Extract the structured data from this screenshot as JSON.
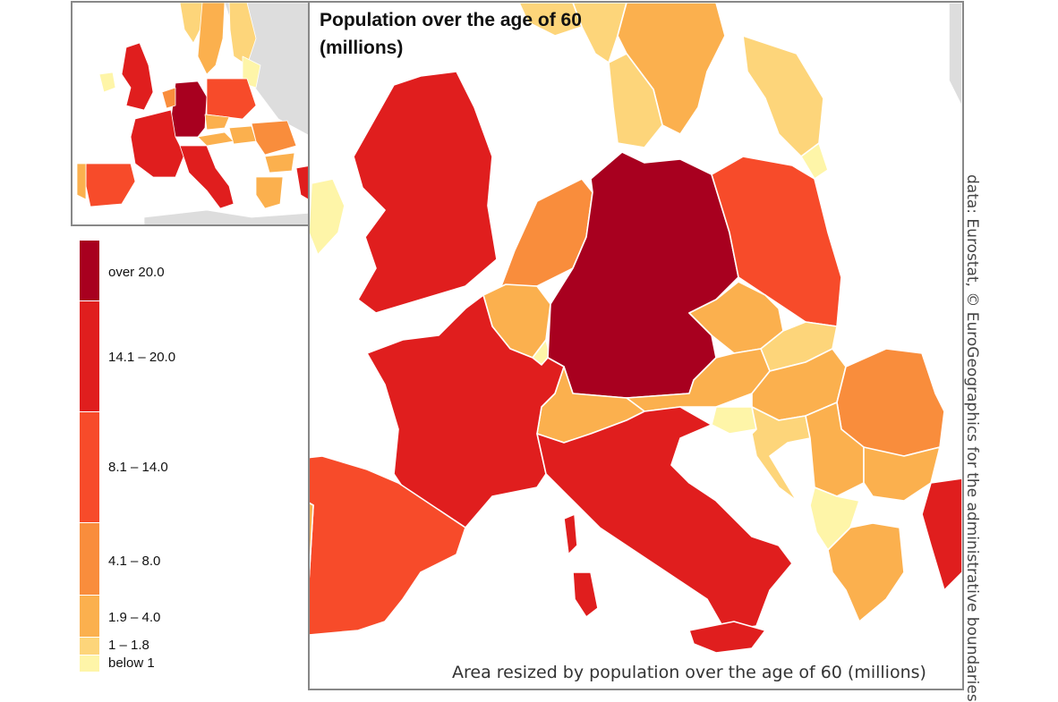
{
  "title_line1": "Population over the age of 60",
  "title_line2": "(millions)",
  "subtitle": "Area resized by population over the age of 60 (millions)",
  "source": "data: Eurostat, © EuroGeographics for the administrative boundaries",
  "legend": [
    {
      "label": "over 20.0",
      "color": "#A8001F"
    },
    {
      "label": "14.1 – 20.0",
      "color": "#E01E1E"
    },
    {
      "label": "8.1 – 14.0",
      "color": "#F74B2A"
    },
    {
      "label": "4.1 – 8.0",
      "color": "#F98D3C"
    },
    {
      "label": "1.9 – 4.0",
      "color": "#FBB04E"
    },
    {
      "label": "1 – 1.8",
      "color": "#FDD57A"
    },
    {
      "label": "below 1",
      "color": "#FEF5A8"
    }
  ],
  "colors": {
    "frame": "#888888",
    "land_outside": "#DDDDDD",
    "border": "#FFFFFF"
  },
  "regions": [
    {
      "name": "Germany",
      "class": "over 20.0"
    },
    {
      "name": "France",
      "class": "14.1 – 20.0"
    },
    {
      "name": "Italy",
      "class": "14.1 – 20.0"
    },
    {
      "name": "United Kingdom",
      "class": "14.1 – 20.0"
    },
    {
      "name": "Spain",
      "class": "8.1 – 14.0"
    },
    {
      "name": "Poland",
      "class": "8.1 – 14.0"
    },
    {
      "name": "Romania",
      "class": "4.1 – 8.0"
    },
    {
      "name": "Netherlands",
      "class": "4.1 – 8.0"
    },
    {
      "name": "Portugal",
      "class": "1.9 – 4.0"
    },
    {
      "name": "Belgium",
      "class": "1.9 – 4.0"
    },
    {
      "name": "Czechia",
      "class": "1.9 – 4.0"
    },
    {
      "name": "Austria",
      "class": "1.9 – 4.0"
    },
    {
      "name": "Hungary",
      "class": "1.9 – 4.0"
    },
    {
      "name": "Switzerland",
      "class": "1.9 – 4.0"
    },
    {
      "name": "Sweden",
      "class": "1.9 – 4.0"
    },
    {
      "name": "Greece",
      "class": "1.9 – 4.0"
    },
    {
      "name": "Bulgaria",
      "class": "1.9 – 4.0"
    },
    {
      "name": "Serbia",
      "class": "1.9 – 4.0"
    },
    {
      "name": "Denmark",
      "class": "1 – 1.8"
    },
    {
      "name": "Finland",
      "class": "1 – 1.8"
    },
    {
      "name": "Norway",
      "class": "1 – 1.8"
    },
    {
      "name": "Slovakia",
      "class": "1 – 1.8"
    },
    {
      "name": "Croatia",
      "class": "1 – 1.8"
    },
    {
      "name": "Ireland",
      "class": "below 1"
    },
    {
      "name": "Slovenia",
      "class": "below 1"
    },
    {
      "name": "Baltic States",
      "class": "below 1"
    },
    {
      "name": "Luxembourg",
      "class": "below 1"
    },
    {
      "name": "Western Balkans",
      "class": "below 1"
    },
    {
      "name": "Turkey",
      "class": "14.1 – 20.0"
    }
  ]
}
